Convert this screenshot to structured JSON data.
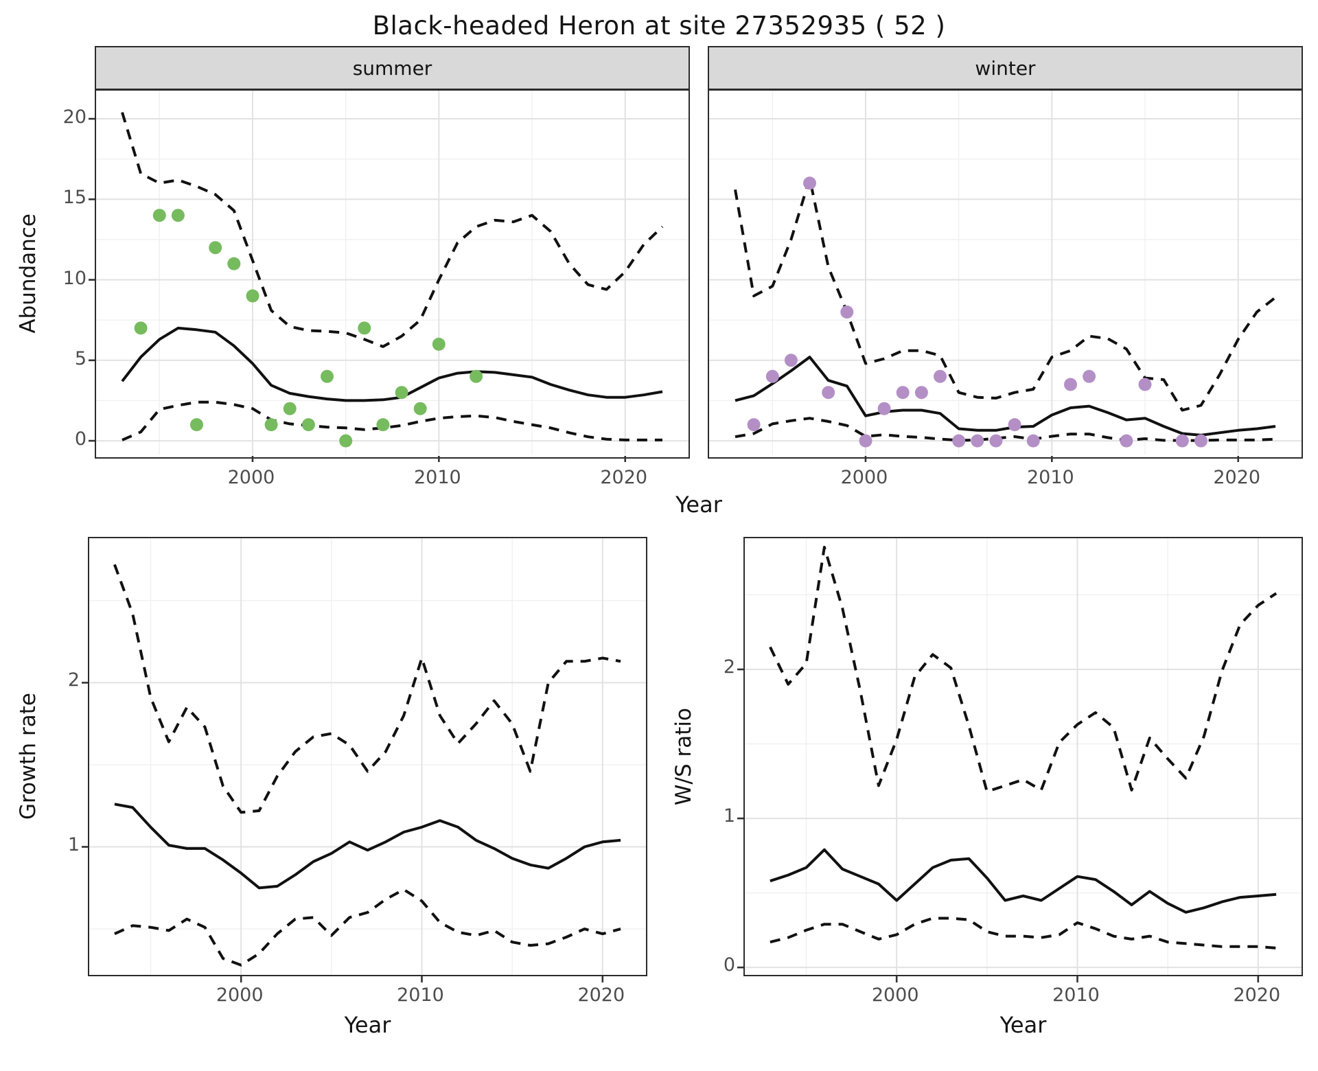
{
  "title": "Black-headed Heron at site 27352935 ( 52 )",
  "colors": {
    "summer_point": "#76bb5e",
    "winter_point": "#b48fc6",
    "line": "#111111",
    "strip_bg": "#d9d9d9",
    "grid_major": "#e2e2e2",
    "grid_minor": "#f0f0f0",
    "tick_text": "#4d4d4d"
  },
  "top": {
    "xlabel": "Year",
    "ylabel": "Abundance",
    "facets": [
      "summer",
      "winter"
    ]
  },
  "bottom": [
    {
      "ylabel": "Growth rate",
      "xlabel": "Year"
    },
    {
      "ylabel": "W/S ratio",
      "xlabel": "Year"
    }
  ],
  "chart_data": [
    {
      "id": "abundance_summer",
      "type": "scatter+line",
      "facet": "summer",
      "xlabel": "Year",
      "ylabel": "Abundance",
      "xlim": [
        1991.6,
        2023.4
      ],
      "ylim": [
        -0.85,
        21.75
      ],
      "xticks": [
        2000,
        2010,
        2020
      ],
      "yticks": [
        0,
        5,
        10,
        15,
        20
      ],
      "grid": true,
      "legend": "none",
      "points": {
        "x": [
          1994,
          1995,
          1996,
          1997,
          1998,
          1999,
          2000,
          2001,
          2002,
          2003,
          2004,
          2005,
          2006,
          2007,
          2008,
          2009,
          2010,
          2012
        ],
        "y": [
          7,
          14,
          14,
          1,
          12,
          11,
          9,
          1,
          2,
          1,
          4,
          0,
          7,
          1,
          3,
          2,
          6,
          4
        ],
        "color_key": "summer_point"
      },
      "year_start": 1993,
      "mean": [
        3.7,
        5.2,
        6.3,
        7.0,
        6.9,
        6.75,
        5.9,
        4.8,
        3.45,
        2.95,
        2.75,
        2.6,
        2.5,
        2.5,
        2.55,
        2.7,
        3.3,
        3.9,
        4.2,
        4.3,
        4.25,
        4.1,
        3.95,
        3.5,
        3.15,
        2.85,
        2.7,
        2.7,
        2.85,
        3.05
      ],
      "upper": [
        20.4,
        16.6,
        16.0,
        16.2,
        15.8,
        15.3,
        14.3,
        11.2,
        8.1,
        7.1,
        6.85,
        6.8,
        6.7,
        6.3,
        5.85,
        6.5,
        7.5,
        10.0,
        12.3,
        13.3,
        13.7,
        13.6,
        14.0,
        13.0,
        11.0,
        9.7,
        9.4,
        10.5,
        12.2,
        13.3
      ],
      "lower": [
        0.05,
        0.55,
        1.95,
        2.2,
        2.4,
        2.4,
        2.25,
        2.0,
        1.3,
        1.05,
        0.95,
        0.85,
        0.8,
        0.7,
        0.8,
        0.95,
        1.2,
        1.4,
        1.5,
        1.55,
        1.45,
        1.2,
        1.0,
        0.8,
        0.5,
        0.25,
        0.1,
        0.05,
        0.05,
        0.05
      ]
    },
    {
      "id": "abundance_winter",
      "type": "scatter+line",
      "facet": "winter",
      "xlabel": "Year",
      "ylabel": "Abundance",
      "xlim": [
        1991.6,
        2023.4
      ],
      "ylim": [
        -0.85,
        21.75
      ],
      "xticks": [
        2000,
        2010,
        2020
      ],
      "yticks": [
        0,
        5,
        10,
        15,
        20
      ],
      "grid": true,
      "legend": "none",
      "points": {
        "x": [
          1994,
          1995,
          1996,
          1997,
          1998,
          1999,
          2000,
          2001,
          2002,
          2003,
          2004,
          2005,
          2006,
          2007,
          2008,
          2009,
          2011,
          2012,
          2014,
          2015,
          2017,
          2018
        ],
        "y": [
          1,
          4,
          5,
          16,
          3,
          8,
          0,
          2,
          3,
          3,
          4,
          0,
          0,
          0,
          1,
          0,
          3.5,
          4,
          0,
          3.5,
          0,
          0
        ],
        "color_key": "winter_point"
      },
      "year_start": 1993,
      "mean": [
        2.5,
        2.8,
        3.55,
        4.35,
        5.2,
        3.75,
        3.4,
        1.55,
        1.8,
        1.9,
        1.9,
        1.7,
        0.75,
        0.65,
        0.65,
        0.85,
        0.9,
        1.6,
        2.05,
        2.15,
        1.75,
        1.3,
        1.4,
        0.9,
        0.45,
        0.35,
        0.5,
        0.65,
        0.75,
        0.9
      ],
      "upper": [
        15.6,
        9.0,
        9.6,
        12.5,
        16.3,
        10.8,
        8.0,
        4.8,
        5.1,
        5.6,
        5.6,
        5.3,
        3.0,
        2.7,
        2.65,
        3.0,
        3.2,
        5.2,
        5.6,
        6.5,
        6.35,
        5.7,
        3.9,
        3.8,
        1.9,
        2.2,
        4.1,
        6.3,
        8.0,
        8.9
      ],
      "lower": [
        0.25,
        0.45,
        1.05,
        1.25,
        1.4,
        1.2,
        0.95,
        0.27,
        0.38,
        0.27,
        0.21,
        0.11,
        0.03,
        0.05,
        0.15,
        0.26,
        0.1,
        0.28,
        0.42,
        0.42,
        0.2,
        0.03,
        0.13,
        0.03,
        0.02,
        0.02,
        0.05,
        0.05,
        0.05,
        0.1
      ]
    },
    {
      "id": "growth_rate",
      "type": "line",
      "facet": null,
      "xlabel": "Year",
      "ylabel": "Growth rate",
      "xlim": [
        1991.6,
        2022.4
      ],
      "ylim": [
        0.22,
        2.88
      ],
      "xticks": [
        2000,
        2010,
        2020
      ],
      "yticks": [
        1,
        2
      ],
      "grid": true,
      "legend": "none",
      "year_start": 1993,
      "mean": [
        1.26,
        1.24,
        1.12,
        1.01,
        0.99,
        0.99,
        0.92,
        0.84,
        0.75,
        0.76,
        0.83,
        0.91,
        0.96,
        1.03,
        0.98,
        1.03,
        1.09,
        1.12,
        1.16,
        1.12,
        1.04,
        0.99,
        0.93,
        0.89,
        0.87,
        0.93,
        1.0,
        1.03,
        1.04
      ],
      "upper": [
        2.72,
        2.42,
        1.91,
        1.64,
        1.85,
        1.73,
        1.37,
        1.21,
        1.22,
        1.43,
        1.58,
        1.67,
        1.69,
        1.62,
        1.46,
        1.58,
        1.8,
        2.15,
        1.8,
        1.63,
        1.75,
        1.89,
        1.75,
        1.46,
        2.0,
        2.13,
        2.13,
        2.15,
        2.13
      ],
      "lower": [
        0.47,
        0.52,
        0.51,
        0.49,
        0.56,
        0.51,
        0.32,
        0.28,
        0.35,
        0.47,
        0.56,
        0.57,
        0.46,
        0.57,
        0.6,
        0.68,
        0.74,
        0.67,
        0.54,
        0.48,
        0.46,
        0.49,
        0.42,
        0.4,
        0.41,
        0.45,
        0.5,
        0.47,
        0.5
      ]
    },
    {
      "id": "ws_ratio",
      "type": "line",
      "facet": null,
      "xlabel": "Year",
      "ylabel": "W/S ratio",
      "xlim": [
        1991.6,
        2022.4
      ],
      "ylim": [
        -0.05,
        2.88
      ],
      "xticks": [
        2000,
        2010,
        2020
      ],
      "yticks": [
        0,
        1,
        2
      ],
      "grid": true,
      "legend": "none",
      "year_start": 1993,
      "mean": [
        0.58,
        0.62,
        0.67,
        0.79,
        0.66,
        0.61,
        0.56,
        0.45,
        0.56,
        0.67,
        0.72,
        0.73,
        0.6,
        0.45,
        0.48,
        0.45,
        0.53,
        0.61,
        0.59,
        0.51,
        0.42,
        0.51,
        0.43,
        0.37,
        0.4,
        0.44,
        0.47,
        0.48,
        0.49
      ],
      "upper": [
        2.15,
        1.9,
        2.04,
        2.82,
        2.41,
        1.85,
        1.22,
        1.53,
        1.95,
        2.1,
        2.01,
        1.62,
        1.18,
        1.22,
        1.26,
        1.19,
        1.51,
        1.63,
        1.71,
        1.61,
        1.19,
        1.54,
        1.4,
        1.27,
        1.55,
        1.99,
        2.3,
        2.43,
        2.51
      ],
      "lower": [
        0.17,
        0.2,
        0.25,
        0.29,
        0.29,
        0.24,
        0.19,
        0.22,
        0.29,
        0.33,
        0.33,
        0.32,
        0.24,
        0.21,
        0.21,
        0.2,
        0.22,
        0.3,
        0.26,
        0.21,
        0.19,
        0.21,
        0.17,
        0.16,
        0.15,
        0.14,
        0.14,
        0.14,
        0.13
      ]
    }
  ]
}
